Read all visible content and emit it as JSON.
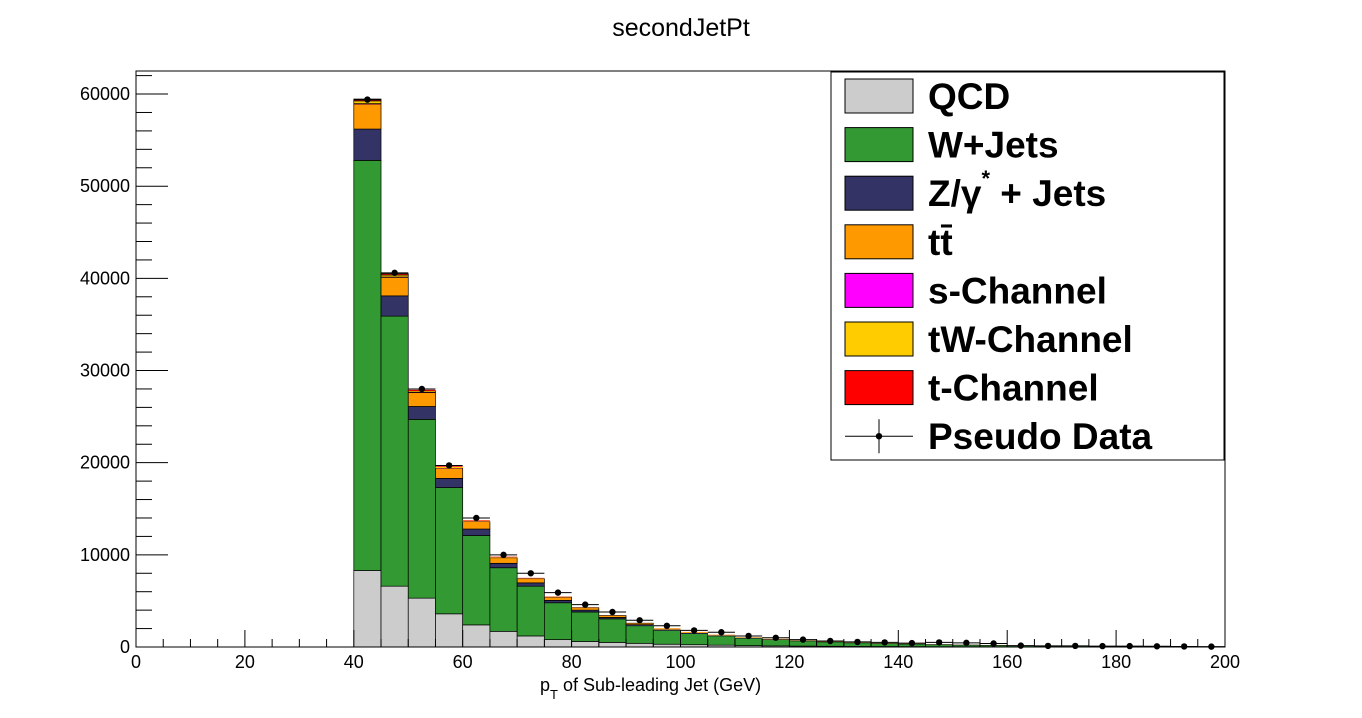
{
  "chart_data": {
    "type": "bar",
    "stacked": true,
    "title": "secondJetPt",
    "xlabel_main": "p",
    "xlabel_sub": "T",
    "xlabel_rest": " of Sub-leading Jet (GeV)",
    "ylabel": "",
    "xlim": [
      0,
      200
    ],
    "ylim": [
      0,
      62500
    ],
    "x_ticks": [
      0,
      20,
      40,
      60,
      80,
      100,
      120,
      140,
      160,
      180,
      200
    ],
    "y_ticks": [
      0,
      10000,
      20000,
      30000,
      40000,
      50000,
      60000
    ],
    "grid": false,
    "legend_position": "top-right",
    "bin_width": 5,
    "x": [
      42.5,
      47.5,
      52.5,
      57.5,
      62.5,
      67.5,
      72.5,
      77.5,
      82.5,
      87.5,
      92.5,
      97.5,
      102.5,
      107.5,
      112.5,
      117.5,
      122.5,
      127.5,
      132.5,
      137.5,
      142.5,
      147.5,
      152.5,
      157.5,
      162.5,
      167.5,
      172.5,
      177.5,
      182.5,
      187.5,
      192.5,
      197.5
    ],
    "series": [
      {
        "name": "QCD",
        "color": "#cccccc",
        "values": [
          8300,
          6600,
          5300,
          3600,
          2400,
          1700,
          1200,
          800,
          600,
          500,
          400,
          300,
          250,
          200,
          150,
          120,
          100,
          80,
          60,
          50,
          40,
          30,
          25,
          20,
          15,
          10,
          8,
          6,
          5,
          4,
          3,
          2
        ]
      },
      {
        "name": "W+Jets",
        "color": "#339933",
        "values": [
          44500,
          29300,
          19400,
          13700,
          9700,
          6900,
          5400,
          4000,
          3200,
          2550,
          1900,
          1500,
          1200,
          1000,
          800,
          680,
          560,
          470,
          390,
          330,
          280,
          230,
          190,
          160,
          130,
          110,
          90,
          75,
          62,
          50,
          42,
          35
        ]
      },
      {
        "name": "Z/γ* + Jets",
        "color": "#333366",
        "values": [
          3400,
          2200,
          1400,
          1000,
          700,
          480,
          360,
          260,
          200,
          160,
          120,
          95,
          75,
          60,
          50,
          40,
          32,
          26,
          21,
          17,
          14,
          11,
          9,
          7,
          6,
          5,
          4,
          3,
          3,
          2,
          2,
          2
        ]
      },
      {
        "name": "tt̄",
        "color": "#ff9900",
        "values": [
          2700,
          2000,
          1500,
          1100,
          800,
          600,
          450,
          350,
          260,
          200,
          160,
          120,
          95,
          75,
          60,
          48,
          38,
          30,
          24,
          19,
          15,
          12,
          10,
          8,
          6,
          5,
          4,
          3,
          3,
          2,
          2,
          2
        ]
      },
      {
        "name": "s-Channel",
        "color": "#ff00ff",
        "values": [
          60,
          45,
          35,
          25,
          18,
          13,
          10,
          7,
          5,
          4,
          3,
          2,
          2,
          2,
          1,
          1,
          1,
          1,
          1,
          1,
          1,
          1,
          1,
          1,
          1,
          1,
          1,
          1,
          1,
          1,
          1,
          1
        ]
      },
      {
        "name": "tW-Channel",
        "color": "#ffcc00",
        "values": [
          300,
          220,
          160,
          120,
          85,
          62,
          46,
          34,
          25,
          19,
          14,
          11,
          8,
          6,
          5,
          4,
          3,
          2,
          2,
          2,
          1,
          1,
          1,
          1,
          1,
          1,
          1,
          1,
          1,
          1,
          1,
          1
        ]
      },
      {
        "name": "t-Channel",
        "color": "#ff0000",
        "values": [
          200,
          150,
          110,
          80,
          60,
          45,
          34,
          26,
          20,
          15,
          12,
          9,
          7,
          6,
          5,
          4,
          3,
          3,
          2,
          2,
          2,
          1,
          1,
          1,
          1,
          1,
          1,
          1,
          1,
          1,
          1,
          1
        ]
      }
    ],
    "pseudo_data": {
      "name": "Pseudo Data",
      "color": "#000000",
      "values": [
        59400,
        40600,
        28000,
        19700,
        14000,
        10000,
        8000,
        5900,
        4600,
        3800,
        2900,
        2300,
        1800,
        1600,
        1200,
        1000,
        800,
        650,
        550,
        500,
        420,
        500,
        450,
        380,
        150,
        120,
        120,
        100,
        100,
        80,
        60,
        40
      ]
    },
    "legend": [
      {
        "label": "QCD",
        "kind": "box",
        "color": "#cccccc"
      },
      {
        "label": "W+Jets",
        "kind": "box",
        "color": "#339933"
      },
      {
        "label": "Z/γ",
        "sup": "*",
        "label_after": " + Jets",
        "kind": "box",
        "color": "#333366"
      },
      {
        "label": "tt̄",
        "kind": "box",
        "color": "#ff9900"
      },
      {
        "label": "s-Channel",
        "kind": "box",
        "color": "#ff00ff"
      },
      {
        "label": "tW-Channel",
        "kind": "box",
        "color": "#ffcc00"
      },
      {
        "label": "t-Channel",
        "kind": "box",
        "color": "#ff0000"
      },
      {
        "label": "Pseudo Data",
        "kind": "marker",
        "color": "#000000"
      }
    ]
  }
}
